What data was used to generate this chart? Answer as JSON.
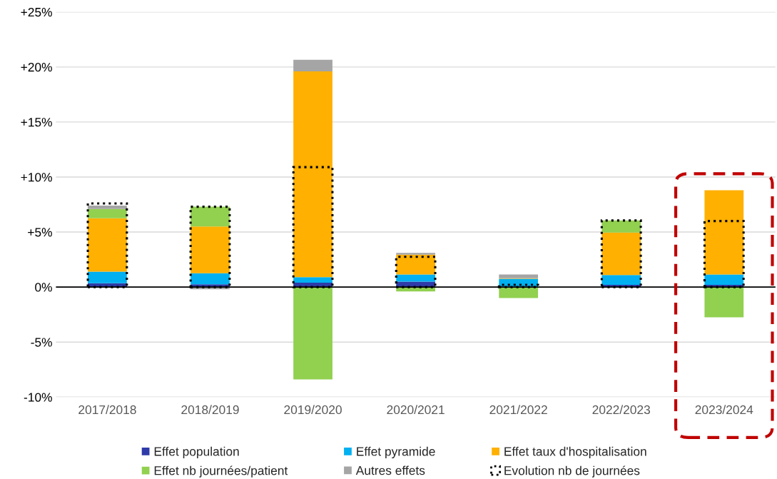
{
  "chart_data": [
    {
      "type": "bar",
      "stacked": true,
      "categories": [
        "2017/2018",
        "2018/2019",
        "2019/2020",
        "2020/2021",
        "2021/2022",
        "2022/2023",
        "2023/2024"
      ],
      "series": [
        {
          "name": "Effet population",
          "color": "#2e3ba8",
          "values": [
            0.35,
            0.25,
            0.4,
            0.5,
            null,
            0.2,
            0.2
          ]
        },
        {
          "name": "Effet pyramide",
          "color": "#00b0f0",
          "values": [
            1.05,
            1.0,
            0.5,
            0.65,
            0.75,
            0.9,
            0.95
          ]
        },
        {
          "name": "Effet taux d'hospitalisation",
          "color": "#ffb000",
          "values": [
            4.85,
            4.25,
            18.7,
            1.8,
            0.05,
            3.85,
            7.65
          ]
        },
        {
          "name": "Effet nb journées/patient",
          "color": "#92d050",
          "values": [
            0.85,
            1.8,
            -8.4,
            -0.4,
            -1.0,
            1.1,
            -2.75
          ]
        },
        {
          "name": "Autres effets",
          "color": "#a5a5a5",
          "values": [
            0.3,
            -0.2,
            1.05,
            0.15,
            0.35,
            null,
            null
          ]
        }
      ],
      "ylim": [
        -10,
        25
      ],
      "yticks": [
        {
          "value": -10,
          "label": "-10%"
        },
        {
          "value": -5,
          "label": "-5%"
        },
        {
          "value": 0,
          "label": "0%"
        },
        {
          "value": 5,
          "label": "+5%"
        },
        {
          "value": 10,
          "label": "+10%"
        },
        {
          "value": 15,
          "label": "+15%"
        },
        {
          "value": 20,
          "label": "+20%"
        },
        {
          "value": 25,
          "label": "+25%"
        }
      ],
      "grid": "y",
      "legend": "bottom"
    },
    {
      "type": "bar",
      "categories": [
        null,
        null,
        null,
        null,
        null,
        null,
        null
      ],
      "series": [
        {
          "name": "Evolution nb de journées",
          "color": "#000000",
          "line_style": "dotted",
          "values": [
            7.6,
            7.3,
            10.9,
            2.75,
            0.2,
            6.05,
            6.0
          ]
        }
      ],
      "ylim": [
        -10,
        25
      ],
      "tick_labels": false,
      "legend": "bottom"
    }
  ]
}
